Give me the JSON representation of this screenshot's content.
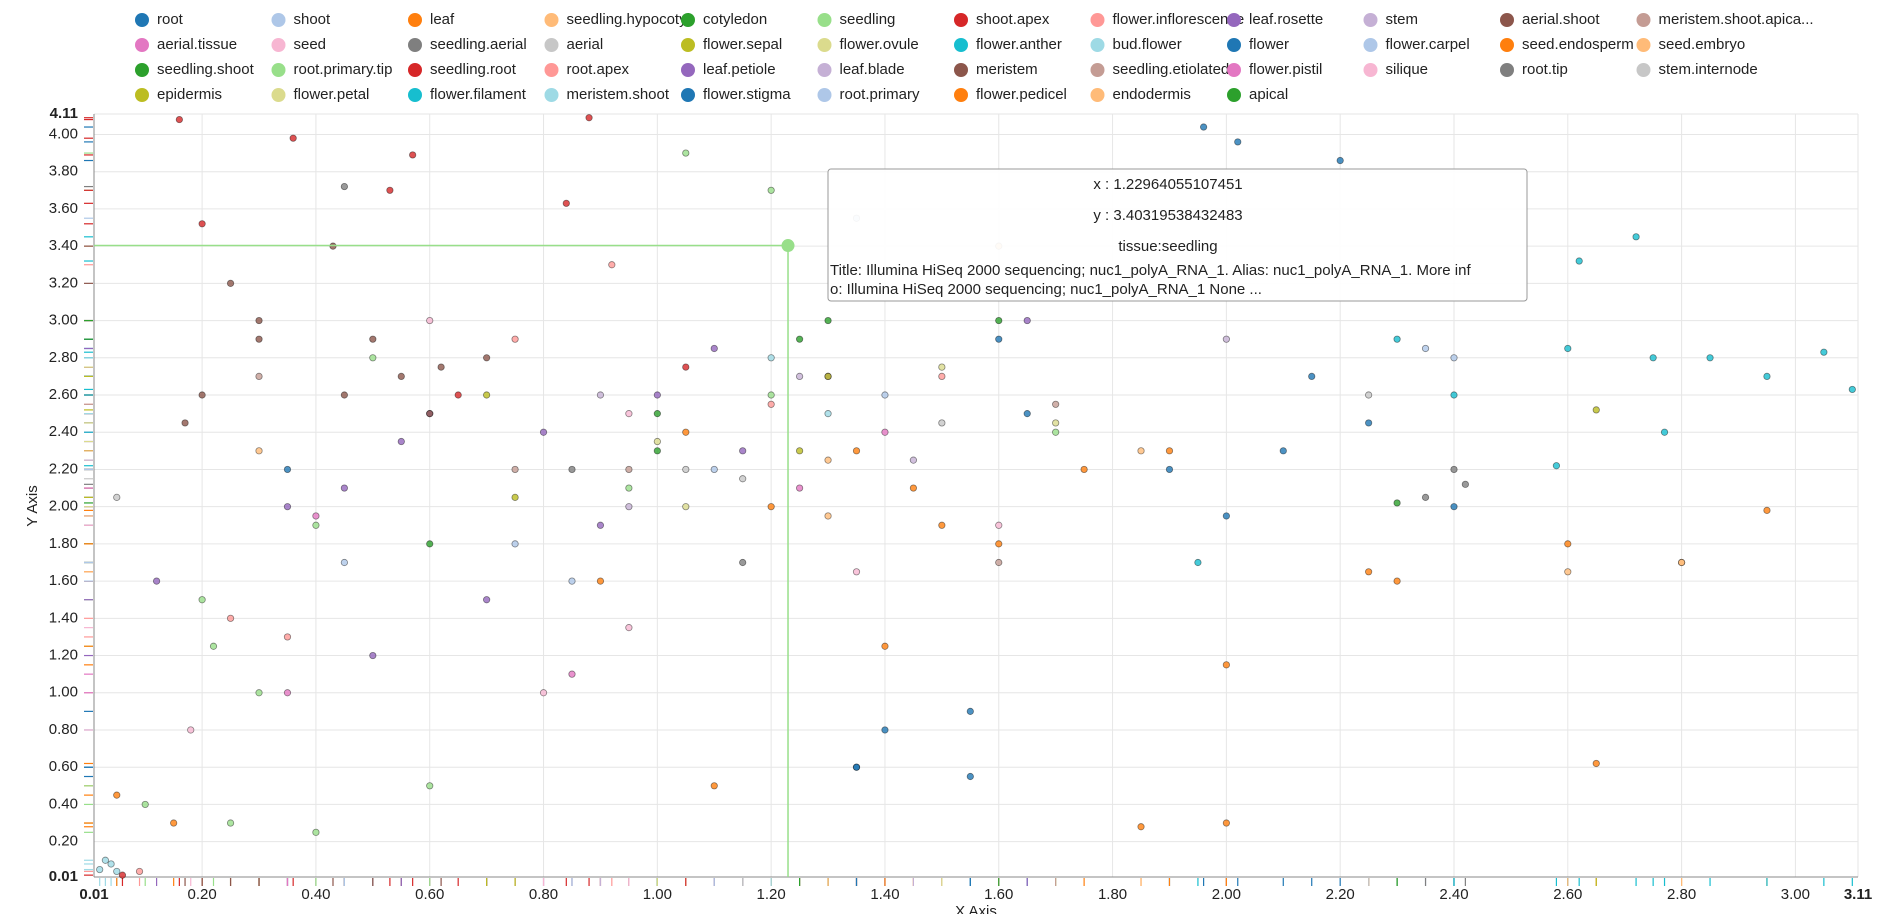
{
  "chart_data": {
    "type": "scatter",
    "x_label": "X Axis",
    "y_label": "Y Axis",
    "grid": true,
    "legend": "top",
    "xlim": [
      0.01,
      3.11
    ],
    "ylim": [
      0.01,
      4.11
    ],
    "xticks": [
      0.01,
      {
        "value": 0.2,
        "label": "0.20"
      },
      {
        "value": 0.4,
        "label": "0.40"
      },
      {
        "value": 0.6,
        "label": "0.60"
      },
      {
        "value": 0.8,
        "label": "0.80"
      },
      {
        "value": 1.0,
        "label": "1.00"
      },
      {
        "value": 1.2,
        "label": "1.20"
      },
      {
        "value": 1.4,
        "label": "1.40"
      },
      {
        "value": 1.6,
        "label": "1.60"
      },
      {
        "value": 1.8,
        "label": "1.80"
      },
      {
        "value": 2.0,
        "label": "2.00"
      },
      {
        "value": 2.2,
        "label": "2.20"
      },
      {
        "value": 2.4,
        "label": "2.40"
      },
      {
        "value": 2.6,
        "label": "2.60"
      },
      {
        "value": 2.8,
        "label": "2.80"
      },
      {
        "value": 3.0,
        "label": "3.00"
      },
      3.11
    ],
    "yticks": [
      0.01,
      {
        "value": 0.2,
        "label": "0.20"
      },
      {
        "value": 0.4,
        "label": "0.40"
      },
      {
        "value": 0.6,
        "label": "0.60"
      },
      {
        "value": 0.8,
        "label": "0.80"
      },
      {
        "value": 1.0,
        "label": "1.00"
      },
      {
        "value": 1.2,
        "label": "1.20"
      },
      {
        "value": 1.4,
        "label": "1.40"
      },
      {
        "value": 1.6,
        "label": "1.60"
      },
      {
        "value": 1.8,
        "label": "1.80"
      },
      {
        "value": 2.0,
        "label": "2.00"
      },
      {
        "value": 2.2,
        "label": "2.20"
      },
      {
        "value": 2.4,
        "label": "2.40"
      },
      {
        "value": 2.6,
        "label": "2.60"
      },
      {
        "value": 2.8,
        "label": "2.80"
      },
      {
        "value": 3.0,
        "label": "3.00"
      },
      {
        "value": 3.2,
        "label": "3.20"
      },
      {
        "value": 3.4,
        "label": "3.40"
      },
      {
        "value": 3.6,
        "label": "3.60"
      },
      {
        "value": 3.8,
        "label": "3.80"
      },
      {
        "value": 4.0,
        "label": "4.00"
      },
      4.11
    ],
    "series": [
      {
        "name": "root",
        "color": "#1f77b4",
        "x": [
          1.96,
          2.02,
          2.2,
          2.1,
          1.65,
          2.4,
          1.4,
          0.35,
          2.0,
          1.35,
          1.55,
          2.25
        ],
        "values": [
          4.04,
          3.96,
          3.86,
          2.3,
          2.5,
          2.0,
          0.8,
          2.2,
          1.95,
          0.6,
          0.9,
          2.45
        ]
      },
      {
        "name": "shoot",
        "color": "#aec7e8",
        "x": [
          1.35,
          0.75,
          1.4,
          2.4
        ],
        "values": [
          3.55,
          1.8,
          2.6,
          2.8
        ]
      },
      {
        "name": "leaf",
        "color": "#ff7f0e",
        "x": [
          1.2,
          1.35,
          1.5,
          1.75,
          0.9,
          2.0,
          2.6,
          2.65,
          1.1,
          0.15,
          1.85,
          2.95,
          1.05,
          1.45,
          2.3
        ],
        "values": [
          2.0,
          2.3,
          1.9,
          2.2,
          1.6,
          1.15,
          1.8,
          0.62,
          0.5,
          0.3,
          0.28,
          1.98,
          2.4,
          2.1,
          1.6
        ]
      },
      {
        "name": "seedling.hypocotyl",
        "color": "#ffbb78",
        "x": [
          1.6,
          2.8,
          0.3
        ],
        "values": [
          3.4,
          1.7,
          2.3
        ]
      },
      {
        "name": "cotyledon",
        "color": "#2ca02c",
        "x": [
          1.0,
          1.3,
          0.6
        ],
        "values": [
          2.5,
          3.0,
          1.8
        ]
      },
      {
        "name": "seedling",
        "color": "#98df8a",
        "x": [
          0.2,
          0.3,
          0.1,
          1.2,
          1.05,
          0.25,
          0.5,
          1.2,
          0.4,
          1.7,
          0.95
        ],
        "values": [
          1.5,
          1.0,
          0.4,
          3.7,
          3.9,
          0.3,
          2.8,
          2.6,
          1.9,
          2.4,
          2.1
        ]
      },
      {
        "name": "shoot.apex",
        "color": "#d62728",
        "x": [
          0.16,
          0.2,
          0.36,
          0.57,
          0.84,
          0.88,
          0.53
        ],
        "values": [
          4.08,
          3.52,
          3.98,
          3.89,
          3.63,
          4.09,
          3.7
        ]
      },
      {
        "name": "flower.inflorescence",
        "color": "#ff9896",
        "x": [
          0.75,
          1.5,
          0.25,
          0.92
        ],
        "values": [
          2.9,
          2.7,
          1.4,
          3.3
        ]
      },
      {
        "name": "leaf.rosette",
        "color": "#9467bd",
        "x": [
          0.45,
          0.6,
          0.8,
          1.0,
          1.15,
          0.35,
          0.7,
          0.5,
          1.3,
          0.9,
          0.12,
          1.65
        ],
        "values": [
          2.1,
          2.5,
          2.4,
          2.6,
          2.3,
          2.0,
          1.5,
          1.2,
          2.7,
          1.9,
          1.6,
          3.0
        ]
      },
      {
        "name": "stem",
        "color": "#c5b0d5",
        "x": [
          1.25,
          0.95,
          2.0
        ],
        "values": [
          2.7,
          2.0,
          2.9
        ]
      },
      {
        "name": "aerial.shoot",
        "color": "#8c564b",
        "x": [
          0.17,
          0.2,
          0.25,
          0.3,
          0.43,
          0.5,
          0.55,
          0.6,
          0.7,
          0.45
        ],
        "values": [
          2.45,
          2.6,
          3.2,
          2.9,
          3.4,
          2.9,
          2.7,
          2.5,
          2.8,
          2.6
        ]
      },
      {
        "name": "meristem.shoot.apica...",
        "color": "#c49c94",
        "x": [
          0.3,
          0.75,
          1.6
        ],
        "values": [
          2.7,
          2.2,
          1.7
        ]
      },
      {
        "name": "aerial.tissue",
        "color": "#e377c2",
        "x": [
          0.4,
          1.4,
          0.85
        ],
        "values": [
          1.95,
          2.4,
          1.1
        ]
      },
      {
        "name": "seed",
        "color": "#f7b6d2",
        "x": [
          0.8,
          0.6,
          1.35,
          0.18,
          0.95
        ],
        "values": [
          1.0,
          3.0,
          1.65,
          0.8,
          2.5
        ]
      },
      {
        "name": "seedling.aerial",
        "color": "#7f7f7f",
        "x": [
          0.45,
          0.85,
          1.15
        ],
        "values": [
          3.72,
          2.2,
          1.7
        ]
      },
      {
        "name": "aerial",
        "color": "#c7c7c7",
        "x": [
          1.05,
          0.05,
          1.5
        ],
        "values": [
          2.2,
          2.05,
          2.45
        ]
      },
      {
        "name": "flower.sepal",
        "color": "#bcbd22",
        "x": [
          0.7,
          1.25,
          2.65
        ],
        "values": [
          2.6,
          2.3,
          2.52
        ]
      },
      {
        "name": "flower.ovule",
        "color": "#dbdb8d",
        "x": [
          1.05,
          1.7
        ],
        "values": [
          2.0,
          2.45
        ]
      },
      {
        "name": "flower.anther",
        "color": "#17becf",
        "x": [
          2.72,
          2.75,
          2.85,
          2.95,
          3.05,
          3.1,
          2.6,
          2.77,
          2.62,
          2.3,
          2.58
        ],
        "values": [
          3.45,
          2.8,
          2.8,
          2.7,
          2.83,
          2.63,
          2.85,
          2.4,
          3.32,
          2.9,
          2.22
        ]
      },
      {
        "name": "bud.flower",
        "color": "#9edae5",
        "x": [
          0.02,
          0.04,
          0.05,
          1.3
        ],
        "values": [
          0.05,
          0.08,
          0.04,
          2.5
        ]
      },
      {
        "name": "flower",
        "color": "#1f77b4",
        "x": [
          1.6,
          2.15,
          1.9
        ],
        "values": [
          2.9,
          2.7,
          2.2
        ]
      },
      {
        "name": "flower.carpel",
        "color": "#aec7e8",
        "x": [
          0.85,
          2.35
        ],
        "values": [
          1.6,
          2.85
        ]
      },
      {
        "name": "seed.endosperm",
        "color": "#ff7f0e",
        "x": [
          1.6,
          1.9,
          2.25,
          0.05
        ],
        "values": [
          1.8,
          2.3,
          1.65,
          0.45
        ]
      },
      {
        "name": "seed.embryo",
        "color": "#ffbb78",
        "x": [
          2.6,
          2.8,
          1.3
        ],
        "values": [
          1.65,
          1.7,
          2.25
        ]
      },
      {
        "name": "seedling.shoot",
        "color": "#2ca02c",
        "x": [
          1.0,
          2.3
        ],
        "values": [
          2.3,
          2.02
        ]
      },
      {
        "name": "root.primary.tip",
        "color": "#98df8a",
        "x": [
          0.4,
          0.22,
          0.6
        ],
        "values": [
          0.25,
          1.25,
          0.5
        ]
      },
      {
        "name": "seedling.root",
        "color": "#d62728",
        "x": [
          0.06,
          1.05,
          0.65
        ],
        "values": [
          0.02,
          2.75,
          2.6
        ]
      },
      {
        "name": "root.apex",
        "color": "#ff9896",
        "x": [
          0.09,
          0.35,
          1.2
        ],
        "values": [
          0.04,
          1.3,
          2.55
        ]
      },
      {
        "name": "leaf.petiole",
        "color": "#9467bd",
        "x": [
          1.1,
          0.55
        ],
        "values": [
          2.85,
          2.35
        ]
      },
      {
        "name": "leaf.blade",
        "color": "#c5b0d5",
        "x": [
          0.9,
          1.45
        ],
        "values": [
          2.6,
          2.25
        ]
      },
      {
        "name": "meristem",
        "color": "#8c564b",
        "x": [
          0.62,
          0.3
        ],
        "values": [
          2.75,
          3.0
        ]
      },
      {
        "name": "seedling.etiolated",
        "color": "#c49c94",
        "x": [
          1.7,
          0.95
        ],
        "values": [
          2.55,
          2.2
        ]
      },
      {
        "name": "flower.pistil",
        "color": "#e377c2",
        "x": [
          0.35,
          1.25
        ],
        "values": [
          1.0,
          2.1
        ]
      },
      {
        "name": "silique",
        "color": "#f7b6d2",
        "x": [
          1.6,
          0.95
        ],
        "values": [
          1.9,
          1.35
        ]
      },
      {
        "name": "root.tip",
        "color": "#7f7f7f",
        "x": [
          2.4,
          2.42,
          2.35
        ],
        "values": [
          2.2,
          2.12,
          2.05
        ]
      },
      {
        "name": "stem.internode",
        "color": "#c7c7c7",
        "x": [
          1.15,
          2.25
        ],
        "values": [
          2.15,
          2.6
        ]
      },
      {
        "name": "epidermis",
        "color": "#bcbd22",
        "x": [
          1.3,
          0.75
        ],
        "values": [
          2.7,
          2.05
        ]
      },
      {
        "name": "flower.petal",
        "color": "#dbdb8d",
        "x": [
          1.5,
          1.0
        ],
        "values": [
          2.75,
          2.35
        ]
      },
      {
        "name": "flower.filament",
        "color": "#17becf",
        "x": [
          1.95,
          2.4
        ],
        "values": [
          1.7,
          2.6
        ]
      },
      {
        "name": "meristem.shoot",
        "color": "#9edae5",
        "x": [
          1.2,
          0.03
        ],
        "values": [
          2.8,
          0.1
        ]
      },
      {
        "name": "flower.stigma",
        "color": "#1f77b4",
        "x": [
          1.35,
          1.55
        ],
        "values": [
          0.6,
          0.55
        ]
      },
      {
        "name": "root.primary",
        "color": "#aec7e8",
        "x": [
          0.45,
          1.1
        ],
        "values": [
          1.7,
          2.2
        ]
      },
      {
        "name": "flower.pedicel",
        "color": "#ff7f0e",
        "x": [
          1.4,
          2.0
        ],
        "values": [
          1.25,
          0.3
        ]
      },
      {
        "name": "endodermis",
        "color": "#ffbb78",
        "x": [
          1.85,
          1.3
        ],
        "values": [
          2.3,
          1.95
        ]
      },
      {
        "name": "apical",
        "color": "#2ca02c",
        "x": [
          1.25,
          1.6
        ],
        "values": [
          2.9,
          3.0
        ]
      }
    ],
    "tooltip": {
      "x": 1.22964055107451,
      "y": 3.40319538432483,
      "color": "#98df8a",
      "x_text": "x : 1.22964055107451",
      "y_text": "y : 3.40319538432483",
      "label": "tissue:seedling",
      "lines": [
        "Title: Illumina HiSeq 2000 sequencing; nuc1_polyA_RNA_1. Alias: nuc1_polyA_RNA_1. More inf",
        "o: Illumina HiSeq 2000 sequencing; nuc1_polyA_RNA_1 None ..."
      ]
    }
  }
}
